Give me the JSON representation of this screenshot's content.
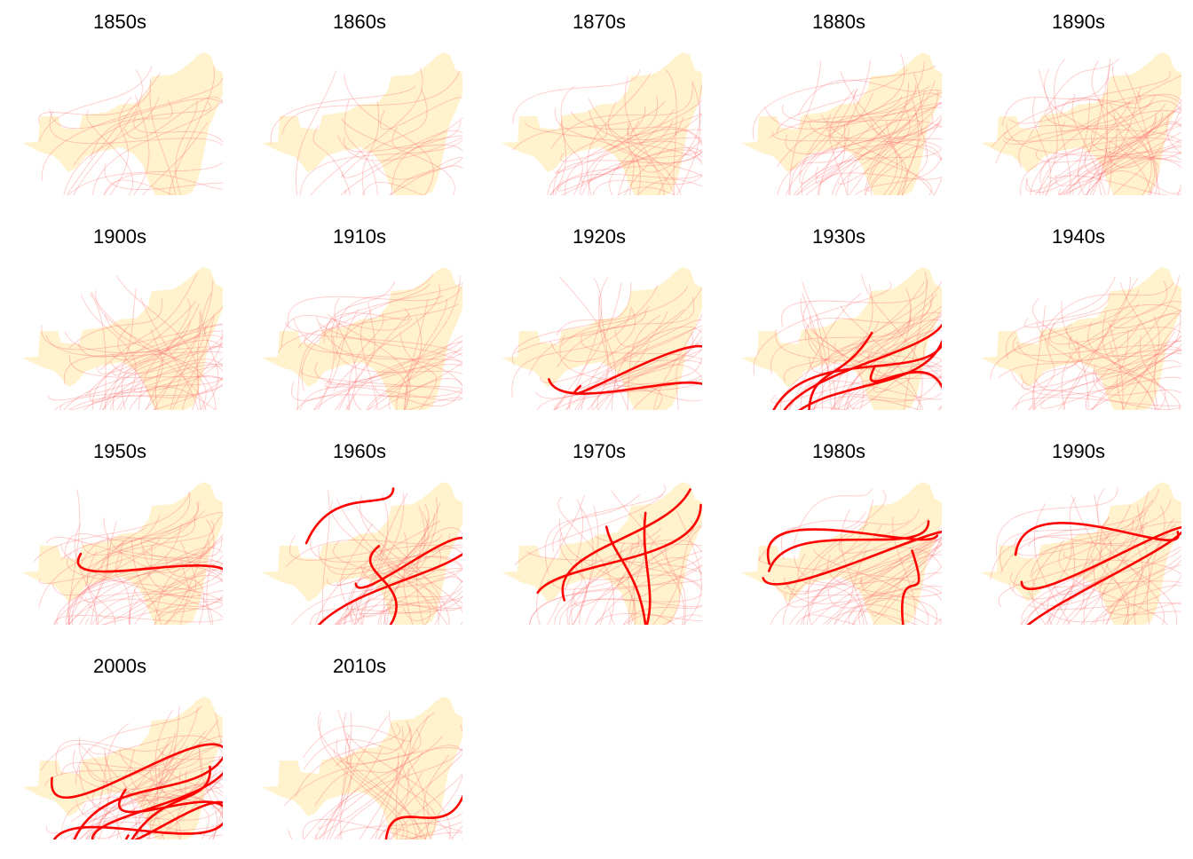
{
  "colors": {
    "land": "#fff2cc",
    "track_faint": "#ff6666",
    "track_major": "#ff0000",
    "background": "#ffffff"
  },
  "panels": [
    {
      "label": "1850s",
      "faint_tracks": 24,
      "major_tracks": 0
    },
    {
      "label": "1860s",
      "faint_tracks": 22,
      "major_tracks": 0
    },
    {
      "label": "1870s",
      "faint_tracks": 40,
      "major_tracks": 0
    },
    {
      "label": "1880s",
      "faint_tracks": 50,
      "major_tracks": 0
    },
    {
      "label": "1890s",
      "faint_tracks": 55,
      "major_tracks": 0
    },
    {
      "label": "1900s",
      "faint_tracks": 48,
      "major_tracks": 0
    },
    {
      "label": "1910s",
      "faint_tracks": 45,
      "major_tracks": 0
    },
    {
      "label": "1920s",
      "faint_tracks": 38,
      "major_tracks": 2
    },
    {
      "label": "1930s",
      "faint_tracks": 48,
      "major_tracks": 5
    },
    {
      "label": "1940s",
      "faint_tracks": 48,
      "major_tracks": 0
    },
    {
      "label": "1950s",
      "faint_tracks": 55,
      "major_tracks": 1
    },
    {
      "label": "1960s",
      "faint_tracks": 45,
      "major_tracks": 4
    },
    {
      "label": "1970s",
      "faint_tracks": 42,
      "major_tracks": 4
    },
    {
      "label": "1980s",
      "faint_tracks": 42,
      "major_tracks": 4
    },
    {
      "label": "1990s",
      "faint_tracks": 48,
      "major_tracks": 3
    },
    {
      "label": "2000s",
      "faint_tracks": 55,
      "major_tracks": 7
    },
    {
      "label": "2010s",
      "faint_tracks": 42,
      "major_tracks": 1
    }
  ]
}
